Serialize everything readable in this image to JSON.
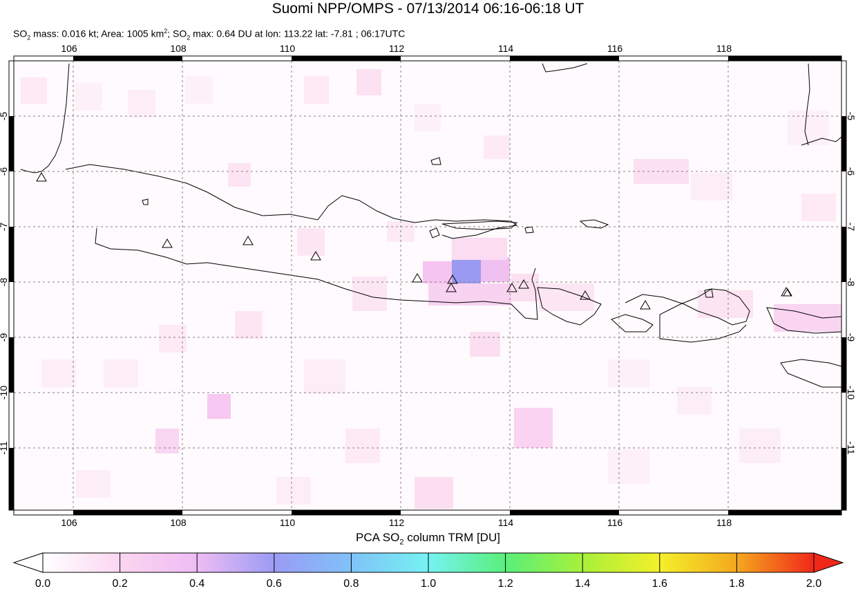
{
  "header": {
    "title": "Suomi NPP/OMPS - 07/13/2014 06:16-06:18 UT",
    "subtitle_parts": {
      "so2_a": "SO",
      "sub_a": "2",
      "mass": " mass: 0.016 kt; Area: 1005 km",
      "sup": "2",
      "sep": "; SO",
      "sub_b": "2",
      "max": " max: 0.64 DU at lon: 113.22 lat: -7.81 ; 06:17UTC"
    }
  },
  "map": {
    "lon_range": [
      105.0,
      120.0
    ],
    "lat_range": [
      -12.0,
      -4.0
    ],
    "lon_ticks": [
      "106",
      "108",
      "110",
      "112",
      "114",
      "116",
      "118"
    ],
    "lat_ticks": [
      "-5",
      "-6",
      "-7",
      "-8",
      "-9",
      "-10",
      "-11"
    ],
    "volcano_icon": "triangle-icon",
    "volcano_count": 13
  },
  "colorbar": {
    "title_a": "PCA SO",
    "title_sub": "2",
    "title_b": " column TRM [DU]",
    "ticks": [
      "0.0",
      "0.2",
      "0.4",
      "0.6",
      "0.8",
      "1.0",
      "1.2",
      "1.4",
      "1.6",
      "1.8",
      "2.0"
    ],
    "range": [
      0.0,
      2.0
    ],
    "colors": [
      "#ffffff",
      "#fbd6f0",
      "#e8b8f4",
      "#9b9bf4",
      "#7fc2f8",
      "#76f2f2",
      "#59ef7a",
      "#a8f03a",
      "#f4f02a",
      "#f4a81e",
      "#f0281a"
    ]
  }
}
